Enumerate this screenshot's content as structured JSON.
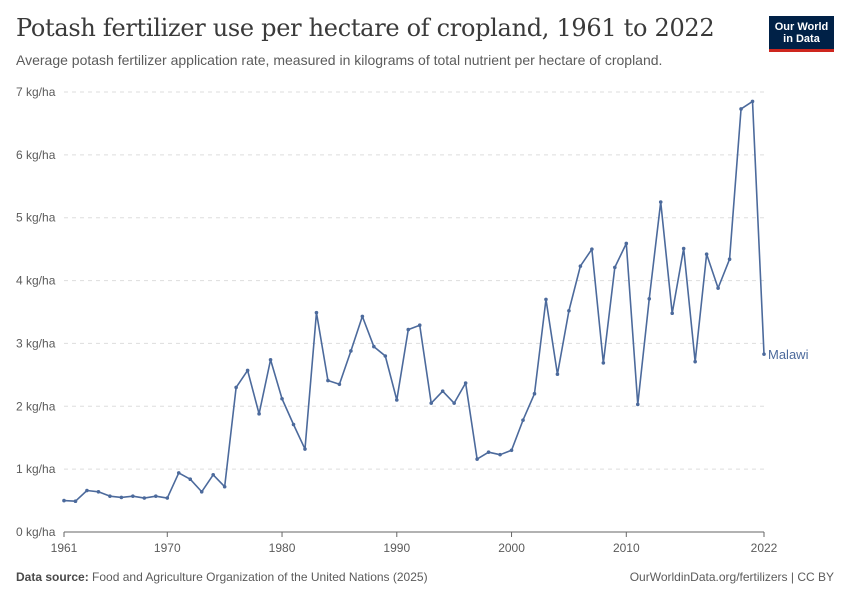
{
  "header": {
    "title": "Potash fertilizer use per hectare of cropland, 1961 to 2022",
    "subtitle": "Average potash fertilizer application rate, measured in kilograms of total nutrient per hectare of cropland."
  },
  "logo": {
    "line1": "Our World",
    "line2": "in Data"
  },
  "footer": {
    "source_label": "Data source:",
    "source_text": "Food and Agriculture Organization of the United Nations (2025)",
    "url_license": "OurWorldinData.org/fertilizers | CC BY"
  },
  "colors": {
    "series": "#4c6a9c",
    "grid": "#dddddd",
    "axis": "#666666",
    "text": "#5b5b5b"
  },
  "chart_data": {
    "type": "line",
    "title": "Potash fertilizer use per hectare of cropland, 1961 to 2022",
    "xlabel": "",
    "ylabel": "",
    "ylim": [
      0,
      7
    ],
    "xlim": [
      1961,
      2022
    ],
    "x_ticks": [
      1961,
      1970,
      1980,
      1990,
      2000,
      2010,
      2022
    ],
    "y_ticks": [
      {
        "value": 0,
        "label": "0 kg/ha"
      },
      {
        "value": 1,
        "label": "1 kg/ha"
      },
      {
        "value": 2,
        "label": "2 kg/ha"
      },
      {
        "value": 3,
        "label": "3 kg/ha"
      },
      {
        "value": 4,
        "label": "4 kg/ha"
      },
      {
        "value": 5,
        "label": "5 kg/ha"
      },
      {
        "value": 6,
        "label": "6 kg/ha"
      },
      {
        "value": 7,
        "label": "7 kg/ha"
      }
    ],
    "grid": true,
    "series": [
      {
        "name": "Malawi",
        "x": [
          1961,
          1962,
          1963,
          1964,
          1965,
          1966,
          1967,
          1968,
          1969,
          1970,
          1971,
          1972,
          1973,
          1974,
          1975,
          1976,
          1977,
          1978,
          1979,
          1980,
          1981,
          1982,
          1983,
          1984,
          1985,
          1986,
          1987,
          1988,
          1989,
          1990,
          1991,
          1992,
          1993,
          1994,
          1995,
          1996,
          1997,
          1998,
          1999,
          2000,
          2001,
          2002,
          2003,
          2004,
          2005,
          2006,
          2007,
          2008,
          2009,
          2010,
          2011,
          2012,
          2013,
          2014,
          2015,
          2016,
          2017,
          2018,
          2019,
          2020,
          2021,
          2022
        ],
        "values": [
          0.5,
          0.49,
          0.66,
          0.64,
          0.57,
          0.55,
          0.57,
          0.54,
          0.57,
          0.54,
          0.94,
          0.84,
          0.64,
          0.91,
          0.72,
          2.3,
          2.57,
          1.88,
          2.74,
          2.12,
          1.71,
          1.32,
          3.49,
          2.41,
          2.35,
          2.88,
          3.43,
          2.95,
          2.8,
          2.1,
          3.22,
          3.29,
          2.05,
          2.24,
          2.05,
          2.37,
          1.16,
          1.27,
          1.23,
          1.3,
          1.78,
          2.2,
          3.7,
          2.51,
          3.52,
          4.23,
          4.5,
          2.69,
          4.21,
          4.59,
          2.03,
          3.71,
          5.25,
          3.48,
          4.51,
          2.71,
          4.42,
          3.88,
          4.34,
          6.73,
          6.85,
          2.83
        ]
      }
    ]
  }
}
